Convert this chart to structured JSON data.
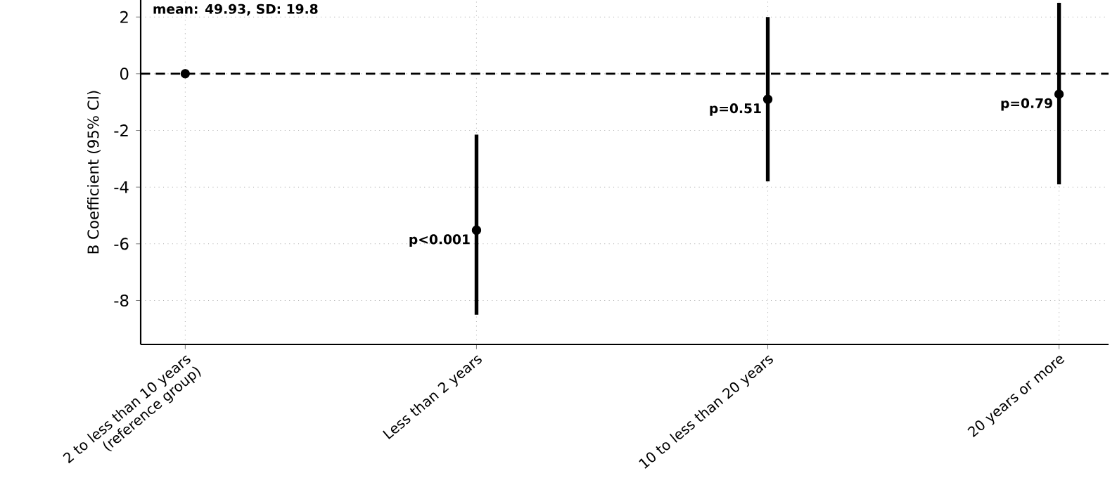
{
  "chart_data": {
    "type": "scatter",
    "ylabel": "B Coefficient (95% CI)",
    "categories": [
      "2 to less than 10 years (reference group)",
      "Less than 2 years",
      "10 to less than 20 years",
      "20 years or more"
    ],
    "series": [
      {
        "color": "#000000",
        "values": [
          0,
          -5.52,
          -0.9,
          -0.72
        ],
        "errors": [
          null,
          [
            -8.5,
            -2.15
          ],
          [
            -3.8,
            2.0
          ],
          [
            -3.9,
            2.5
          ]
        ]
      }
    ],
    "ylim": [
      -9.55,
      2.6
    ],
    "yticks": [
      -8,
      -6,
      -4,
      -2,
      0,
      2
    ],
    "ref_lines": [
      {
        "axis": "y",
        "value": 0,
        "color": "#000000",
        "line_style": "dashed"
      }
    ],
    "annotations": [
      "mean: 49.93, SD: 19.8",
      {
        "text": "p<0.001",
        "x": "Less than 2 years",
        "y": -5.52
      },
      {
        "text": "p=0.51",
        "x": "10 to less than 20 years",
        "y": -0.9
      },
      {
        "text": "p=0.79",
        "x": "20 years or more",
        "y": -0.72
      }
    ],
    "grid": true,
    "marker": "circle"
  }
}
